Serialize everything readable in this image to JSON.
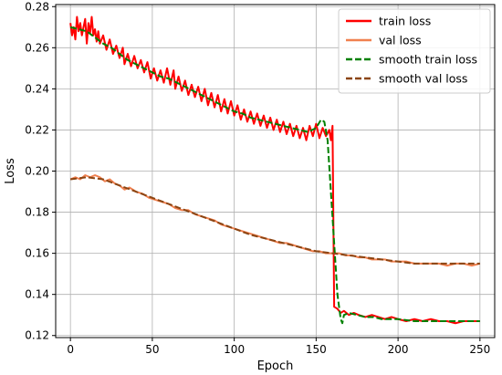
{
  "chart_data": {
    "type": "line",
    "title": "",
    "xlabel": "Epoch",
    "ylabel": "Loss",
    "xlim": [
      -9,
      259
    ],
    "ylim": [
      0.119,
      0.281
    ],
    "x_ticks": [
      0,
      50,
      100,
      150,
      200,
      250
    ],
    "y_ticks": [
      0.12,
      0.14,
      0.16,
      0.18,
      0.2,
      0.22,
      0.24,
      0.26,
      0.28
    ],
    "grid": true,
    "legend_position": "top-right",
    "series": [
      {
        "name": "train loss",
        "color": "#ff0000",
        "style": "solid",
        "width": 2,
        "points": [
          [
            0,
            0.272
          ],
          [
            1,
            0.266
          ],
          [
            2,
            0.27
          ],
          [
            3,
            0.264
          ],
          [
            4,
            0.275
          ],
          [
            5,
            0.268
          ],
          [
            6,
            0.272
          ],
          [
            7,
            0.266
          ],
          [
            8,
            0.27
          ],
          [
            9,
            0.274
          ],
          [
            10,
            0.262
          ],
          [
            11,
            0.272
          ],
          [
            12,
            0.267
          ],
          [
            13,
            0.275
          ],
          [
            14,
            0.266
          ],
          [
            15,
            0.269
          ],
          [
            16,
            0.263
          ],
          [
            17,
            0.268
          ],
          [
            18,
            0.262
          ],
          [
            20,
            0.266
          ],
          [
            22,
            0.259
          ],
          [
            24,
            0.264
          ],
          [
            26,
            0.257
          ],
          [
            28,
            0.261
          ],
          [
            30,
            0.255
          ],
          [
            32,
            0.26
          ],
          [
            33,
            0.252
          ],
          [
            35,
            0.257
          ],
          [
            37,
            0.251
          ],
          [
            39,
            0.256
          ],
          [
            41,
            0.25
          ],
          [
            43,
            0.254
          ],
          [
            45,
            0.248
          ],
          [
            47,
            0.253
          ],
          [
            49,
            0.245
          ],
          [
            51,
            0.25
          ],
          [
            53,
            0.244
          ],
          [
            55,
            0.249
          ],
          [
            57,
            0.243
          ],
          [
            59,
            0.25
          ],
          [
            61,
            0.242
          ],
          [
            63,
            0.249
          ],
          [
            64,
            0.24
          ],
          [
            66,
            0.246
          ],
          [
            68,
            0.239
          ],
          [
            70,
            0.244
          ],
          [
            72,
            0.237
          ],
          [
            74,
            0.242
          ],
          [
            76,
            0.236
          ],
          [
            78,
            0.241
          ],
          [
            80,
            0.234
          ],
          [
            82,
            0.24
          ],
          [
            84,
            0.232
          ],
          [
            86,
            0.238
          ],
          [
            88,
            0.231
          ],
          [
            90,
            0.237
          ],
          [
            92,
            0.229
          ],
          [
            94,
            0.235
          ],
          [
            96,
            0.228
          ],
          [
            98,
            0.234
          ],
          [
            100,
            0.227
          ],
          [
            102,
            0.232
          ],
          [
            104,
            0.225
          ],
          [
            106,
            0.23
          ],
          [
            108,
            0.224
          ],
          [
            110,
            0.229
          ],
          [
            112,
            0.223
          ],
          [
            114,
            0.228
          ],
          [
            116,
            0.222
          ],
          [
            118,
            0.227
          ],
          [
            120,
            0.221
          ],
          [
            122,
            0.226
          ],
          [
            124,
            0.22
          ],
          [
            126,
            0.225
          ],
          [
            128,
            0.219
          ],
          [
            130,
            0.224
          ],
          [
            132,
            0.218
          ],
          [
            134,
            0.223
          ],
          [
            136,
            0.217
          ],
          [
            138,
            0.222
          ],
          [
            140,
            0.216
          ],
          [
            142,
            0.221
          ],
          [
            144,
            0.215
          ],
          [
            146,
            0.222
          ],
          [
            148,
            0.217
          ],
          [
            150,
            0.223
          ],
          [
            152,
            0.216
          ],
          [
            154,
            0.221
          ],
          [
            156,
            0.217
          ],
          [
            158,
            0.22
          ],
          [
            159,
            0.215
          ],
          [
            160,
            0.222
          ],
          [
            161,
            0.134
          ],
          [
            163,
            0.133
          ],
          [
            165,
            0.131
          ],
          [
            167,
            0.132
          ],
          [
            170,
            0.13
          ],
          [
            173,
            0.131
          ],
          [
            176,
            0.13
          ],
          [
            180,
            0.129
          ],
          [
            184,
            0.13
          ],
          [
            188,
            0.129
          ],
          [
            192,
            0.128
          ],
          [
            196,
            0.129
          ],
          [
            200,
            0.128
          ],
          [
            205,
            0.127
          ],
          [
            210,
            0.128
          ],
          [
            215,
            0.127
          ],
          [
            220,
            0.128
          ],
          [
            225,
            0.127
          ],
          [
            230,
            0.127
          ],
          [
            235,
            0.126
          ],
          [
            240,
            0.127
          ],
          [
            245,
            0.127
          ],
          [
            250,
            0.127
          ]
        ]
      },
      {
        "name": "val loss",
        "color": "#f0804f",
        "style": "solid",
        "width": 2,
        "points": [
          [
            0,
            0.196
          ],
          [
            3,
            0.197
          ],
          [
            6,
            0.196
          ],
          [
            9,
            0.198
          ],
          [
            12,
            0.197
          ],
          [
            15,
            0.198
          ],
          [
            18,
            0.197
          ],
          [
            21,
            0.195
          ],
          [
            24,
            0.196
          ],
          [
            27,
            0.194
          ],
          [
            30,
            0.193
          ],
          [
            33,
            0.191
          ],
          [
            36,
            0.192
          ],
          [
            40,
            0.19
          ],
          [
            44,
            0.189
          ],
          [
            48,
            0.187
          ],
          [
            52,
            0.186
          ],
          [
            56,
            0.185
          ],
          [
            60,
            0.184
          ],
          [
            64,
            0.182
          ],
          [
            68,
            0.181
          ],
          [
            72,
            0.181
          ],
          [
            76,
            0.179
          ],
          [
            80,
            0.178
          ],
          [
            84,
            0.177
          ],
          [
            88,
            0.176
          ],
          [
            92,
            0.174
          ],
          [
            96,
            0.173
          ],
          [
            100,
            0.172
          ],
          [
            104,
            0.171
          ],
          [
            108,
            0.17
          ],
          [
            112,
            0.169
          ],
          [
            116,
            0.168
          ],
          [
            120,
            0.167
          ],
          [
            124,
            0.166
          ],
          [
            128,
            0.165
          ],
          [
            132,
            0.165
          ],
          [
            136,
            0.164
          ],
          [
            140,
            0.163
          ],
          [
            144,
            0.162
          ],
          [
            148,
            0.161
          ],
          [
            152,
            0.161
          ],
          [
            156,
            0.16
          ],
          [
            160,
            0.16
          ],
          [
            164,
            0.16
          ],
          [
            168,
            0.159
          ],
          [
            172,
            0.159
          ],
          [
            176,
            0.158
          ],
          [
            180,
            0.158
          ],
          [
            184,
            0.157
          ],
          [
            188,
            0.157
          ],
          [
            192,
            0.157
          ],
          [
            196,
            0.156
          ],
          [
            200,
            0.156
          ],
          [
            205,
            0.156
          ],
          [
            210,
            0.155
          ],
          [
            215,
            0.155
          ],
          [
            220,
            0.155
          ],
          [
            225,
            0.155
          ],
          [
            230,
            0.154
          ],
          [
            235,
            0.155
          ],
          [
            240,
            0.155
          ],
          [
            245,
            0.154
          ],
          [
            250,
            0.155
          ]
        ]
      },
      {
        "name": "smooth train loss",
        "color": "#008000",
        "style": "dashed",
        "width": 2,
        "points": [
          [
            0,
            0.27
          ],
          [
            5,
            0.269
          ],
          [
            10,
            0.268
          ],
          [
            15,
            0.265
          ],
          [
            20,
            0.262
          ],
          [
            25,
            0.26
          ],
          [
            30,
            0.257
          ],
          [
            35,
            0.254
          ],
          [
            40,
            0.252
          ],
          [
            45,
            0.25
          ],
          [
            50,
            0.248
          ],
          [
            55,
            0.246
          ],
          [
            60,
            0.245
          ],
          [
            65,
            0.243
          ],
          [
            70,
            0.241
          ],
          [
            75,
            0.239
          ],
          [
            80,
            0.237
          ],
          [
            85,
            0.235
          ],
          [
            90,
            0.233
          ],
          [
            95,
            0.231
          ],
          [
            100,
            0.229
          ],
          [
            105,
            0.228
          ],
          [
            110,
            0.226
          ],
          [
            115,
            0.225
          ],
          [
            120,
            0.224
          ],
          [
            125,
            0.223
          ],
          [
            130,
            0.222
          ],
          [
            135,
            0.221
          ],
          [
            140,
            0.22
          ],
          [
            145,
            0.219
          ],
          [
            150,
            0.221
          ],
          [
            153,
            0.225
          ],
          [
            155,
            0.224
          ],
          [
            157,
            0.215
          ],
          [
            159,
            0.19
          ],
          [
            161,
            0.165
          ],
          [
            163,
            0.14
          ],
          [
            165,
            0.128
          ],
          [
            166,
            0.126
          ],
          [
            167,
            0.13
          ],
          [
            170,
            0.131
          ],
          [
            175,
            0.13
          ],
          [
            180,
            0.129
          ],
          [
            185,
            0.129
          ],
          [
            190,
            0.128
          ],
          [
            195,
            0.128
          ],
          [
            200,
            0.128
          ],
          [
            210,
            0.127
          ],
          [
            220,
            0.127
          ],
          [
            230,
            0.127
          ],
          [
            240,
            0.127
          ],
          [
            250,
            0.127
          ]
        ]
      },
      {
        "name": "smooth val loss",
        "color": "#8b4513",
        "style": "dashed",
        "width": 2,
        "points": [
          [
            0,
            0.196
          ],
          [
            10,
            0.197
          ],
          [
            20,
            0.196
          ],
          [
            30,
            0.193
          ],
          [
            40,
            0.19
          ],
          [
            50,
            0.187
          ],
          [
            60,
            0.184
          ],
          [
            70,
            0.181
          ],
          [
            80,
            0.178
          ],
          [
            90,
            0.175
          ],
          [
            100,
            0.172
          ],
          [
            110,
            0.169
          ],
          [
            120,
            0.167
          ],
          [
            130,
            0.165
          ],
          [
            140,
            0.163
          ],
          [
            150,
            0.161
          ],
          [
            160,
            0.16
          ],
          [
            170,
            0.159
          ],
          [
            180,
            0.158
          ],
          [
            190,
            0.157
          ],
          [
            200,
            0.156
          ],
          [
            210,
            0.155
          ],
          [
            220,
            0.155
          ],
          [
            230,
            0.155
          ],
          [
            240,
            0.155
          ],
          [
            250,
            0.155
          ]
        ]
      }
    ]
  }
}
